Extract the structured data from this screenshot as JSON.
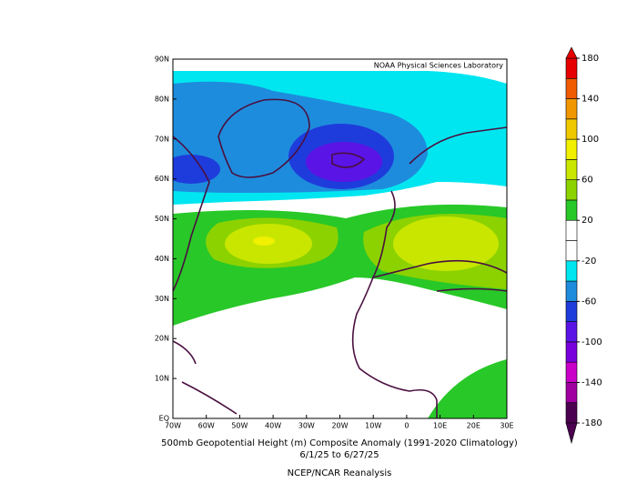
{
  "chart_data": {
    "type": "contour-map",
    "credit": "NOAA Physical Sciences Laboratory",
    "title": "500mb Geopotential Height (m) Composite Anomaly (1991-2020 Climatology)",
    "subtitle": "6/1/25  to 6/27/25",
    "source": "NCEP/NCAR Reanalysis",
    "xlim": [
      -70,
      30
    ],
    "ylim": [
      0,
      90
    ],
    "xticks": [
      {
        "value": -70,
        "label": "70W"
      },
      {
        "value": -60,
        "label": "60W"
      },
      {
        "value": -50,
        "label": "50W"
      },
      {
        "value": -40,
        "label": "40W"
      },
      {
        "value": -30,
        "label": "30W"
      },
      {
        "value": -20,
        "label": "20W"
      },
      {
        "value": -10,
        "label": "10W"
      },
      0,
      {
        "value": 10,
        "label": "10E"
      },
      {
        "value": 20,
        "label": "20E"
      },
      {
        "value": 30,
        "label": "30E"
      }
    ],
    "yticks": [
      {
        "value": 0,
        "label": "EQ"
      },
      {
        "value": 10,
        "label": "10N"
      },
      {
        "value": 20,
        "label": "20N"
      },
      {
        "value": 30,
        "label": "30N"
      },
      {
        "value": 40,
        "label": "40N"
      },
      {
        "value": 50,
        "label": "50N"
      },
      {
        "value": 60,
        "label": "60N"
      },
      {
        "value": 70,
        "label": "70N"
      },
      {
        "value": 80,
        "label": "80N"
      },
      {
        "value": 90,
        "label": "90N"
      }
    ],
    "colorbar": {
      "levels": [
        -180,
        -160,
        -140,
        -120,
        -100,
        -80,
        -60,
        -40,
        -20,
        0,
        20,
        40,
        60,
        80,
        100,
        120,
        140,
        160,
        180
      ],
      "colors": [
        "#4b0050",
        "#a000a0",
        "#c800c8",
        "#7800dc",
        "#5a14e6",
        "#1e3cdc",
        "#1e8cdc",
        "#00e6f0",
        "#ffffff",
        "#ffffff",
        "#28c828",
        "#8cd200",
        "#c8e600",
        "#f0f000",
        "#f0c800",
        "#f09600",
        "#f05a00",
        "#e60000"
      ],
      "ticks": [
        -180,
        -140,
        -100,
        -60,
        -20,
        20,
        60,
        100,
        140,
        180
      ]
    }
  }
}
